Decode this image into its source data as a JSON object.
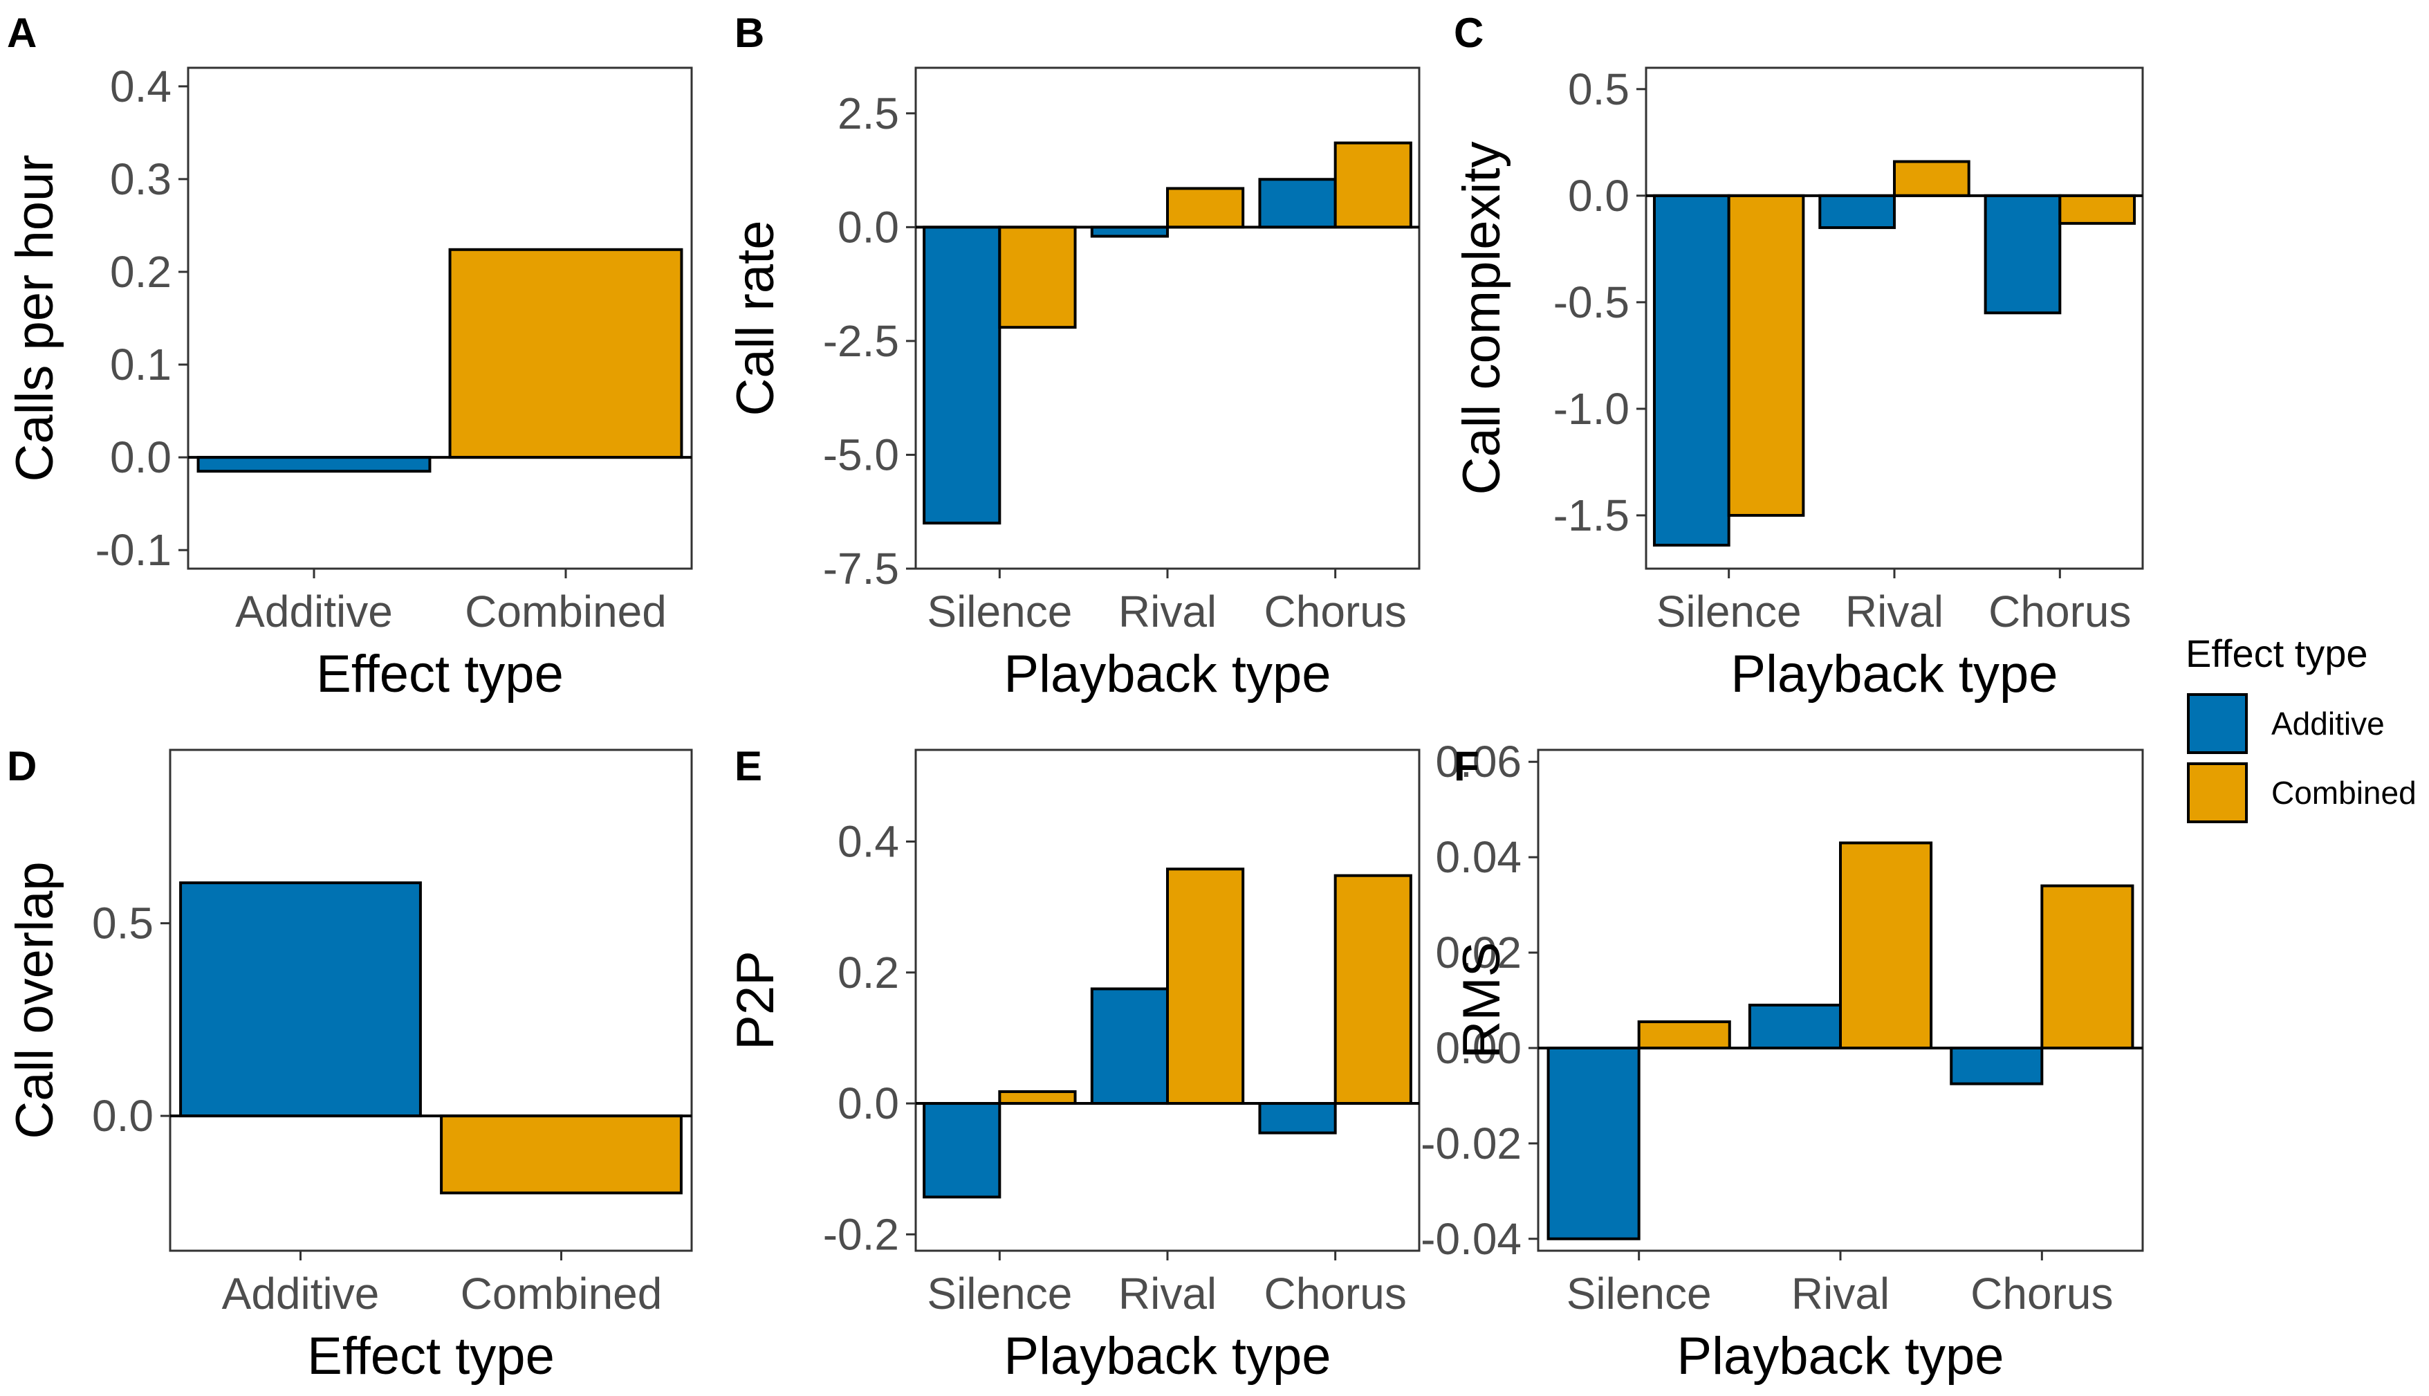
{
  "colors": {
    "additive": "#0072b2",
    "combined": "#e69f00",
    "frame": "#333333",
    "zero_line": "#000000"
  },
  "legend": {
    "title": "Effect type",
    "items": [
      {
        "label": "Additive",
        "color": "#0072b2"
      },
      {
        "label": "Combined",
        "color": "#e69f00"
      }
    ]
  },
  "chart_data": [
    {
      "panel": "A",
      "type": "bar",
      "ylabel": "Calls per hour",
      "xlabel": "Effect type",
      "categories": [
        "Additive",
        "Combined"
      ],
      "series": [
        {
          "name": "Additive",
          "values": [
            -0.015,
            null
          ]
        },
        {
          "name": "Combined",
          "values": [
            null,
            0.224
          ]
        }
      ],
      "ylim": [
        -0.12,
        0.42
      ],
      "yticks": [
        -0.1,
        0.0,
        0.1,
        0.2,
        0.3,
        0.4
      ],
      "ytick_labels": [
        "-0.1",
        "0.0",
        "0.1",
        "0.2",
        "0.3",
        "0.4"
      ]
    },
    {
      "panel": "B",
      "type": "bar",
      "ylabel": "Call rate",
      "xlabel": "Playback type",
      "categories": [
        "Silence",
        "Rival",
        "Chorus"
      ],
      "series": [
        {
          "name": "Additive",
          "values": [
            -6.5,
            -0.2,
            1.05
          ]
        },
        {
          "name": "Combined",
          "values": [
            -2.2,
            0.85,
            1.85
          ]
        }
      ],
      "ylim": [
        -7.5,
        3.5
      ],
      "yticks": [
        -7.5,
        -5.0,
        -2.5,
        0.0,
        2.5
      ],
      "ytick_labels": [
        "-7.5",
        "-5.0",
        "-2.5",
        "0.0",
        "2.5"
      ]
    },
    {
      "panel": "C",
      "type": "bar",
      "ylabel": "Call complexity",
      "xlabel": "Playback type",
      "categories": [
        "Silence",
        "Rival",
        "Chorus"
      ],
      "series": [
        {
          "name": "Additive",
          "values": [
            -1.64,
            -0.15,
            -0.55
          ]
        },
        {
          "name": "Combined",
          "values": [
            -1.5,
            0.16,
            -0.13
          ]
        }
      ],
      "ylim": [
        -1.75,
        0.6
      ],
      "yticks": [
        -1.5,
        -1.0,
        -0.5,
        0.0,
        0.5
      ],
      "ytick_labels": [
        "-1.5",
        "-1.0",
        "-0.5",
        "0.0",
        "0.5"
      ]
    },
    {
      "panel": "D",
      "type": "bar",
      "ylabel": "Call overlap",
      "xlabel": "Effect type",
      "categories": [
        "Additive",
        "Combined"
      ],
      "series": [
        {
          "name": "Additive",
          "values": [
            0.605,
            null
          ]
        },
        {
          "name": "Combined",
          "values": [
            null,
            -0.2
          ]
        }
      ],
      "ylim": [
        -0.35,
        0.95
      ],
      "yticks": [
        0.0,
        0.5
      ],
      "ytick_labels": [
        "0.0",
        "0.5"
      ]
    },
    {
      "panel": "E",
      "type": "bar",
      "ylabel": "P2P",
      "xlabel": "Playback type",
      "categories": [
        "Silence",
        "Rival",
        "Chorus"
      ],
      "series": [
        {
          "name": "Additive",
          "values": [
            -0.143,
            0.175,
            -0.045
          ]
        },
        {
          "name": "Combined",
          "values": [
            0.018,
            0.358,
            0.348
          ]
        }
      ],
      "ylim": [
        -0.225,
        0.54
      ],
      "yticks": [
        -0.2,
        0.0,
        0.2,
        0.4
      ],
      "ytick_labels": [
        "-0.2",
        "0.0",
        "0.2",
        "0.4"
      ]
    },
    {
      "panel": "F",
      "type": "bar",
      "ylabel": "RMS",
      "xlabel": "Playback type",
      "categories": [
        "Silence",
        "Rival",
        "Chorus"
      ],
      "series": [
        {
          "name": "Additive",
          "values": [
            -0.04,
            0.009,
            -0.0075
          ]
        },
        {
          "name": "Combined",
          "values": [
            0.0055,
            0.043,
            0.034
          ]
        }
      ],
      "ylim": [
        -0.0425,
        0.0625
      ],
      "yticks": [
        -0.04,
        -0.02,
        0.0,
        0.02,
        0.04,
        0.06
      ],
      "ytick_labels": [
        "-0.04",
        "-0.02",
        "0.00",
        "0.02",
        "0.04",
        "0.06"
      ]
    }
  ]
}
